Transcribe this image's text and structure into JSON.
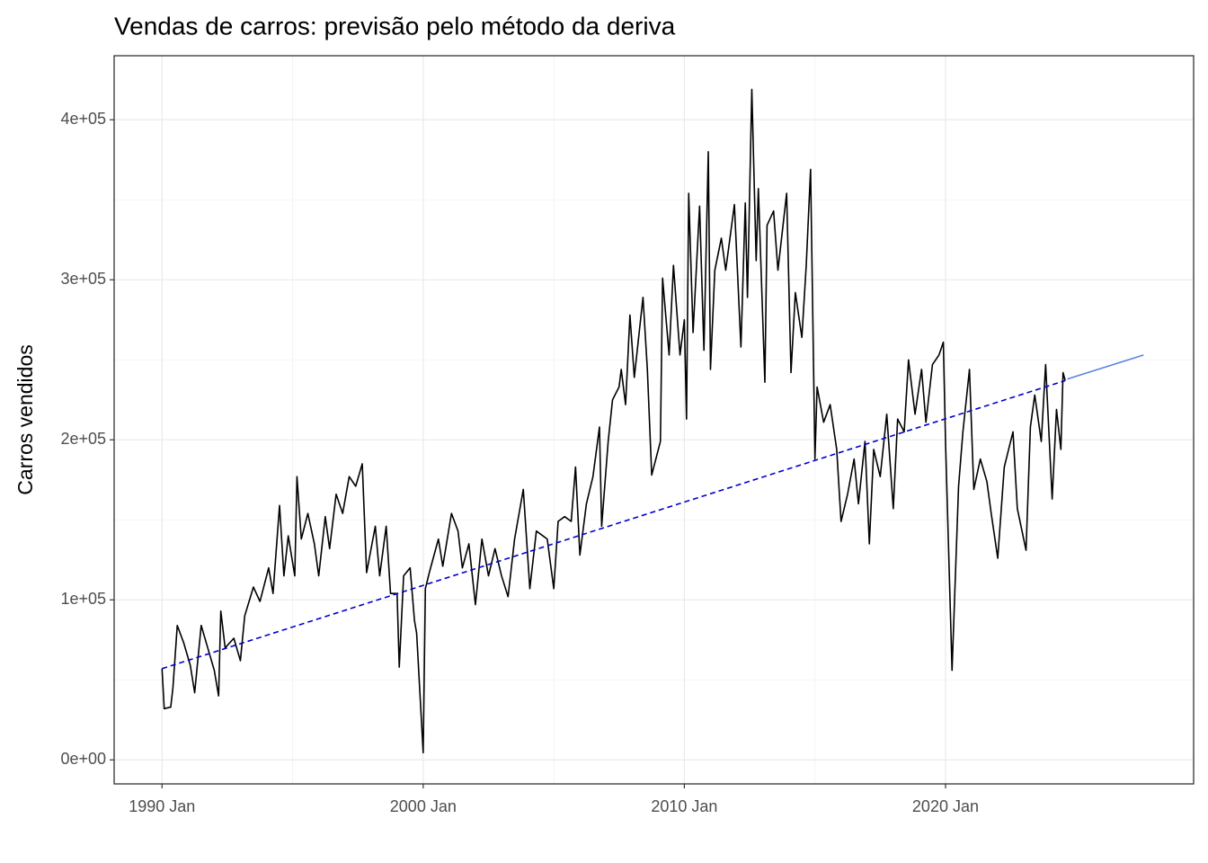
{
  "chart_data": {
    "type": "line",
    "title": "Vendas de carros: previsão pelo método da deriva",
    "y_label": "Carros vendidos",
    "xlim": [
      "1988-03",
      "2029-07"
    ],
    "xticks": [
      {
        "value": "1990-01",
        "label": "1990 Jan"
      },
      {
        "value": "2000-01",
        "label": "2000 Jan"
      },
      {
        "value": "2010-01",
        "label": "2010 Jan"
      },
      {
        "value": "2020-01",
        "label": "2020 Jan"
      }
    ],
    "ylim": [
      -15000,
      440000
    ],
    "yticks": [
      {
        "value": 0,
        "label": "0e+00"
      },
      {
        "value": 100000,
        "label": "1e+05"
      },
      {
        "value": 200000,
        "label": "2e+05"
      },
      {
        "value": 300000,
        "label": "3e+05"
      },
      {
        "value": 400000,
        "label": "4e+05"
      }
    ],
    "grid": true,
    "minor_grid": true,
    "series": [
      {
        "color": "#000000",
        "x": [
          "1990-01",
          "1990-02",
          "1990-05",
          "1990-06",
          "1990-08",
          "1990-11",
          "1991-02",
          "1991-04",
          "1991-07",
          "1991-10",
          "1992-01",
          "1992-03",
          "1992-04",
          "1992-06",
          "1992-10",
          "1993-01",
          "1993-03",
          "1993-07",
          "1993-10",
          "1994-02",
          "1994-04",
          "1994-07",
          "1994-09",
          "1994-11",
          "1995-02",
          "1995-03",
          "1995-05",
          "1995-08",
          "1995-11",
          "1996-01",
          "1996-04",
          "1996-06",
          "1996-09",
          "1996-12",
          "1997-03",
          "1997-06",
          "1997-09",
          "1997-11",
          "1998-03",
          "1998-05",
          "1998-08",
          "1998-10",
          "1999-01",
          "1999-02",
          "1999-04",
          "1999-07",
          "1999-09",
          "1999-10",
          "2000-01",
          "2000-02",
          "2000-04",
          "2000-08",
          "2000-10",
          "2001-02",
          "2001-05",
          "2001-07",
          "2001-10",
          "2002-01",
          "2002-04",
          "2002-07",
          "2002-10",
          "2003-01",
          "2003-04",
          "2003-07",
          "2003-11",
          "2004-02",
          "2004-05",
          "2004-08",
          "2004-10",
          "2005-01",
          "2005-03",
          "2005-06",
          "2005-09",
          "2005-11",
          "2006-01",
          "2006-04",
          "2006-07",
          "2006-10",
          "2006-11",
          "2007-02",
          "2007-04",
          "2007-07",
          "2007-08",
          "2007-10",
          "2007-12",
          "2008-02",
          "2008-04",
          "2008-06",
          "2008-08",
          "2008-10",
          "2009-02",
          "2009-03",
          "2009-06",
          "2009-08",
          "2009-11",
          "2010-01",
          "2010-02",
          "2010-03",
          "2010-05",
          "2010-08",
          "2010-10",
          "2010-12",
          "2011-01",
          "2011-03",
          "2011-06",
          "2011-08",
          "2011-12",
          "2012-03",
          "2012-05",
          "2012-06",
          "2012-08",
          "2012-10",
          "2012-11",
          "2013-02",
          "2013-03",
          "2013-06",
          "2013-08",
          "2013-12",
          "2014-02",
          "2014-04",
          "2014-07",
          "2014-09",
          "2014-11",
          "2015-01",
          "2015-02",
          "2015-05",
          "2015-08",
          "2015-11",
          "2016-01",
          "2016-04",
          "2016-07",
          "2016-09",
          "2016-12",
          "2017-02",
          "2017-04",
          "2017-07",
          "2017-10",
          "2018-01",
          "2018-03",
          "2018-06",
          "2018-08",
          "2018-11",
          "2019-02",
          "2019-04",
          "2019-07",
          "2019-10",
          "2019-12",
          "2020-01",
          "2020-04",
          "2020-07",
          "2020-09",
          "2020-12",
          "2021-02",
          "2021-05",
          "2021-08",
          "2021-10",
          "2022-01",
          "2022-04",
          "2022-08",
          "2022-10",
          "2023-02",
          "2023-04",
          "2023-06",
          "2023-09",
          "2023-11",
          "2024-02",
          "2024-04",
          "2024-06",
          "2024-07",
          "2024-08"
        ],
        "values": [
          57000,
          32000,
          33000,
          45000,
          84000,
          73000,
          59000,
          42000,
          84000,
          70000,
          56000,
          40000,
          93000,
          70000,
          76000,
          62000,
          90000,
          108000,
          99000,
          120000,
          104000,
          159000,
          115000,
          140000,
          115000,
          177000,
          138000,
          154000,
          135000,
          115000,
          152000,
          132000,
          166000,
          154000,
          177000,
          171000,
          185000,
          117000,
          146000,
          115000,
          146000,
          104000,
          104000,
          58000,
          115000,
          120000,
          87000,
          79000,
          4500,
          107000,
          118000,
          138000,
          121000,
          154000,
          143000,
          120000,
          135000,
          97000,
          138000,
          115000,
          132000,
          115000,
          102000,
          138000,
          169000,
          107000,
          143000,
          140000,
          138000,
          107000,
          149000,
          152000,
          149000,
          183000,
          128000,
          160000,
          177000,
          208000,
          146000,
          199000,
          225000,
          233000,
          244000,
          222000,
          278000,
          239000,
          264000,
          289000,
          244000,
          178000,
          199000,
          301000,
          253000,
          309000,
          253000,
          275000,
          213000,
          354000,
          267000,
          346000,
          256000,
          380000,
          244000,
          306000,
          326000,
          306000,
          347000,
          258000,
          348000,
          289000,
          419000,
          312000,
          357000,
          236000,
          334000,
          343000,
          306000,
          354000,
          242000,
          292000,
          264000,
          309000,
          369000,
          188000,
          233000,
          211000,
          222000,
          194000,
          149000,
          166000,
          188000,
          160000,
          199000,
          135000,
          194000,
          177000,
          216000,
          157000,
          213000,
          205000,
          250000,
          216000,
          244000,
          211000,
          247000,
          253000,
          261000,
          199000,
          56000,
          171000,
          205000,
          244000,
          169000,
          188000,
          174000,
          154000,
          126000,
          183000,
          205000,
          157000,
          131000,
          208000,
          228000,
          199000,
          247000,
          163000,
          219000,
          194000,
          242000,
          237000
        ]
      },
      {
        "color": "#0000cd",
        "dashed": true,
        "x": [
          "1990-01",
          "2024-08"
        ],
        "values": [
          57000,
          237000
        ]
      },
      {
        "color": "#5b80e8",
        "x": [
          "2024-09",
          "2027-08"
        ],
        "values": [
          238000,
          253000
        ]
      }
    ]
  }
}
